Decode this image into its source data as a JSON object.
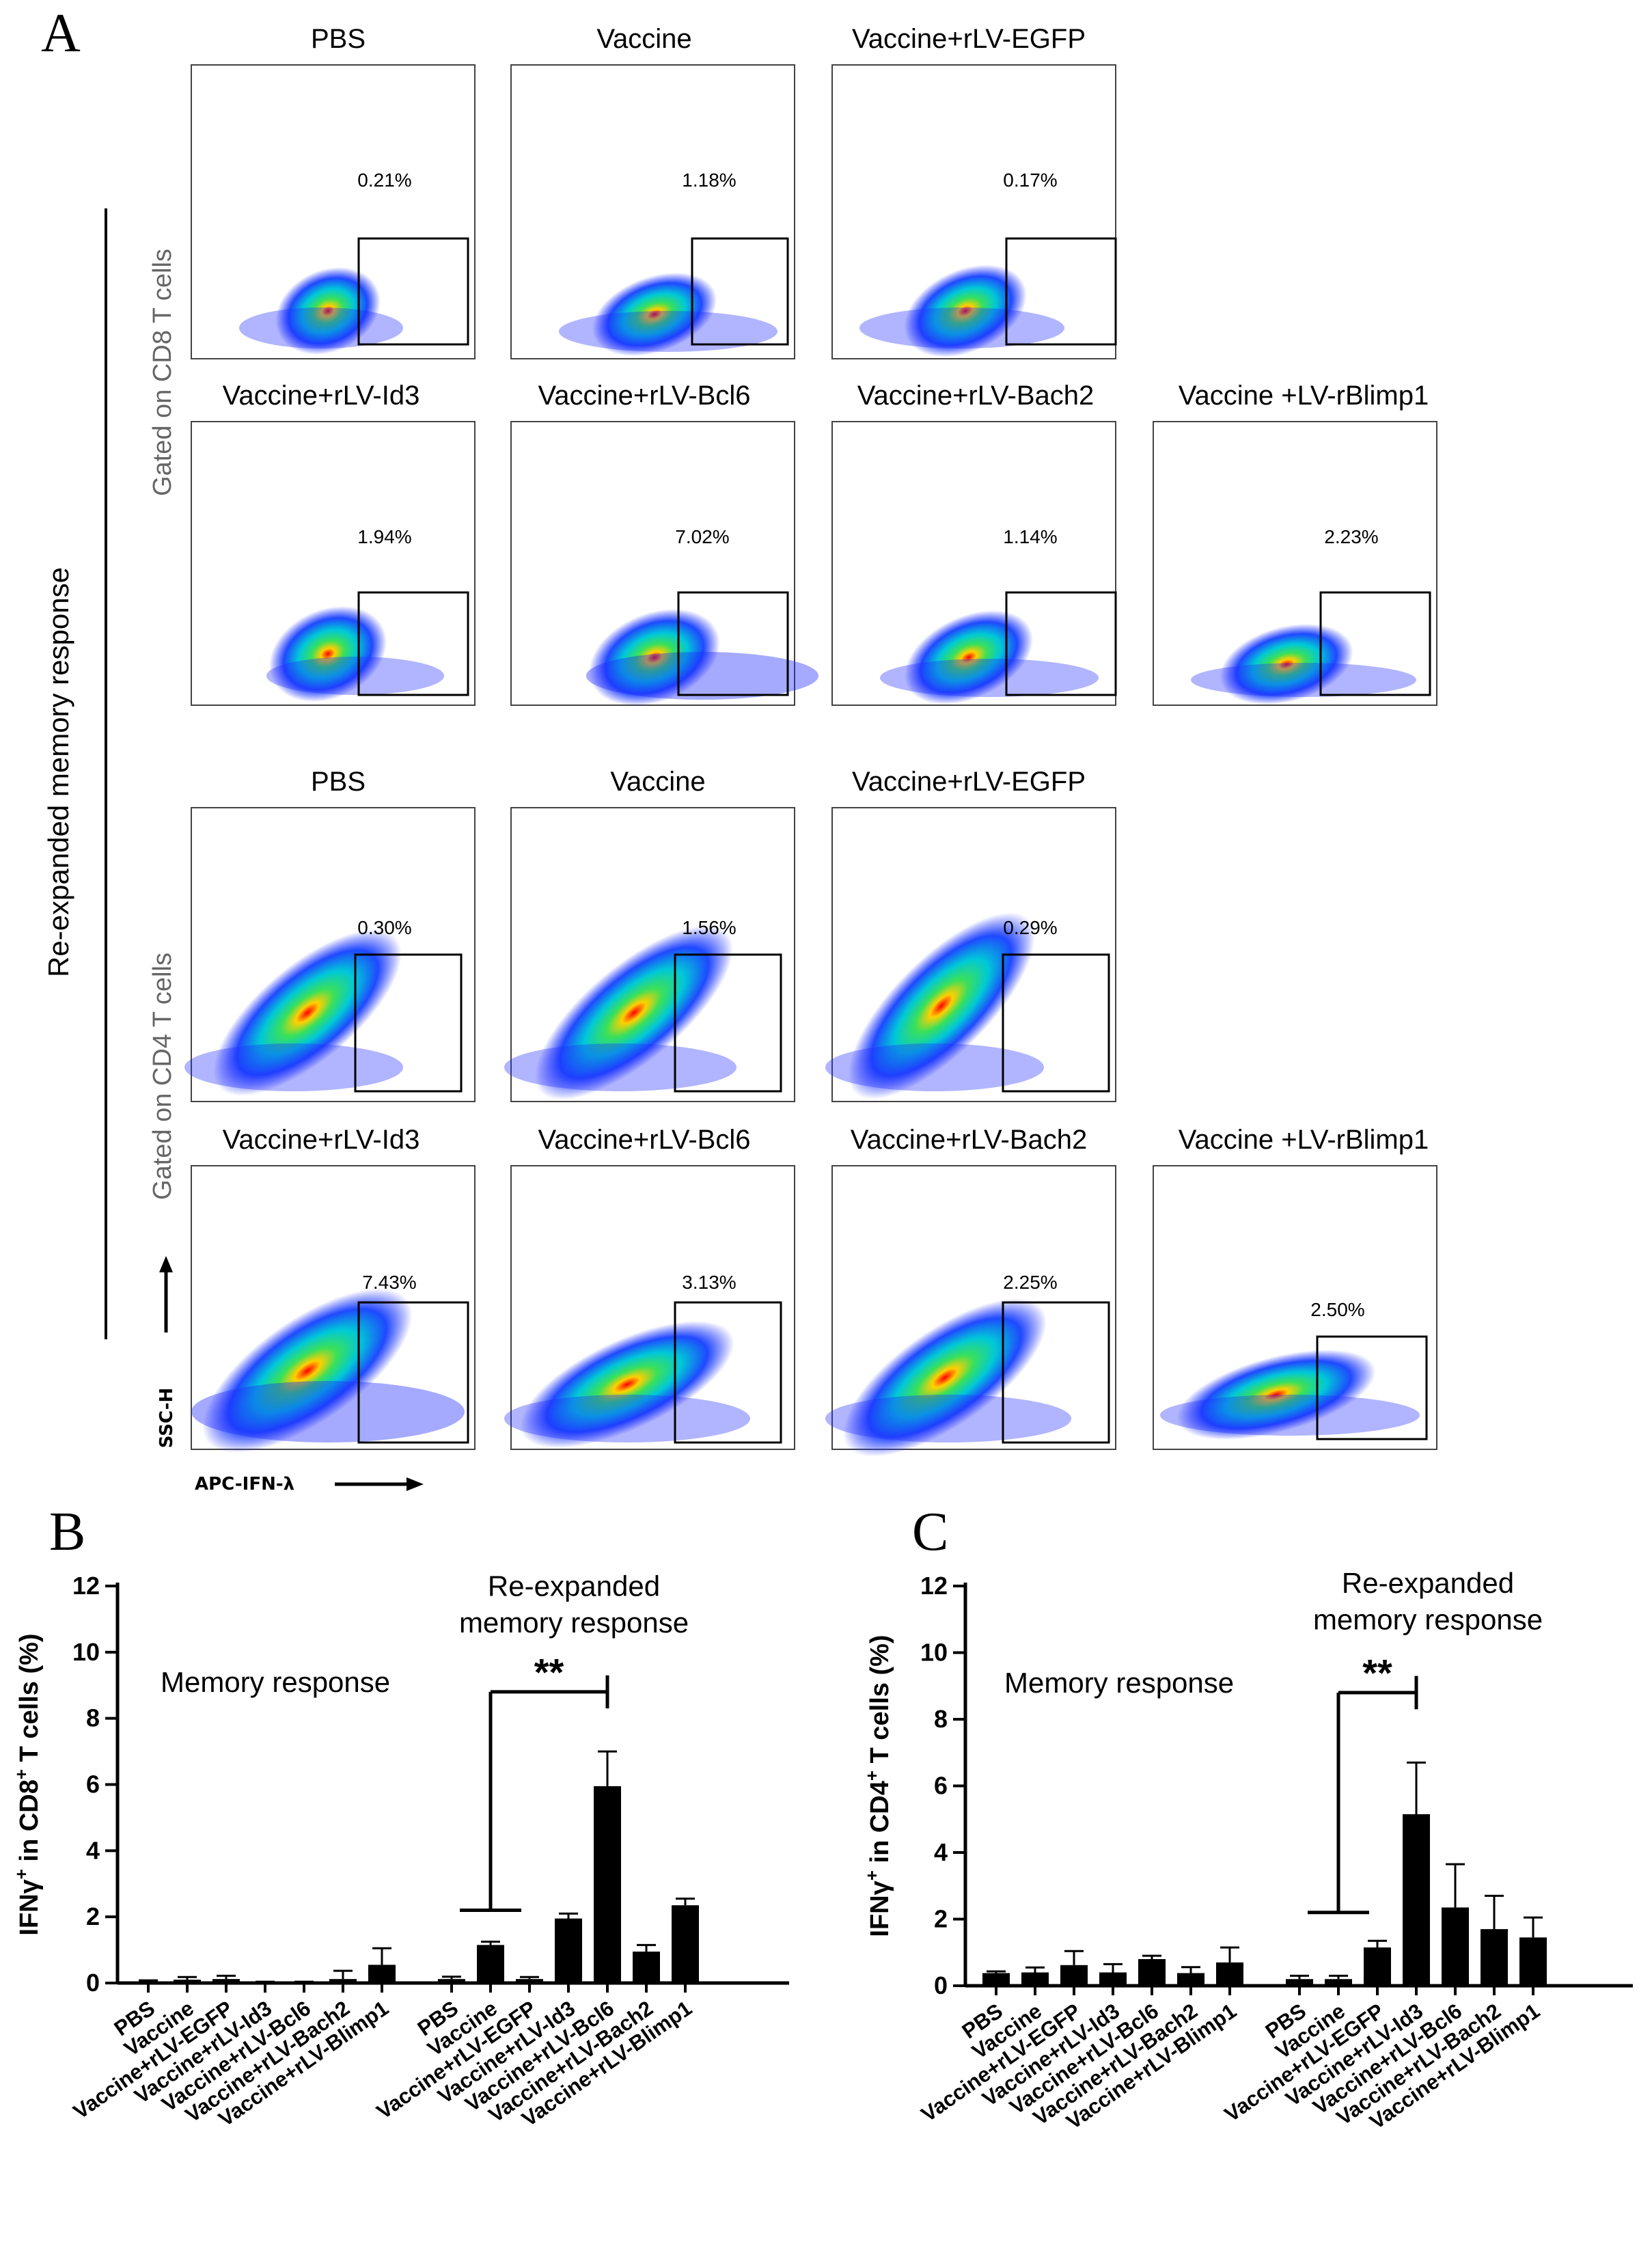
{
  "panel_labels": {
    "a": "A",
    "b": "B",
    "c": "C"
  },
  "flow": {
    "side_label": "Re-expanded memory response",
    "cd8_label": "Gated on CD8 T cells",
    "cd4_label": "Gated on CD4 T cells",
    "y_axis": "SSC-H",
    "x_axis": "APC-IFN-λ",
    "cd8_plots": [
      {
        "title": "PBS",
        "pct": "0.21%"
      },
      {
        "title": "Vaccine",
        "pct": "1.18%"
      },
      {
        "title": "Vaccine+rLV-EGFP",
        "pct": "0.17%"
      },
      {
        "title": "Vaccine+rLV-Id3",
        "pct": "1.94%"
      },
      {
        "title": "Vaccine+rLV-Bcl6",
        "pct": "7.02%"
      },
      {
        "title": "Vaccine+rLV-Bach2",
        "pct": "1.14%"
      },
      {
        "title": "Vaccine +LV-rBlimp1",
        "pct": "2.23%"
      }
    ],
    "cd4_plots": [
      {
        "title": "PBS",
        "pct": "0.30%"
      },
      {
        "title": "Vaccine",
        "pct": "1.56%"
      },
      {
        "title": "Vaccine+rLV-EGFP",
        "pct": "0.29%"
      },
      {
        "title": "Vaccine+rLV-Id3",
        "pct": "7.43%"
      },
      {
        "title": "Vaccine+rLV-Bcl6",
        "pct": "3.13%"
      },
      {
        "title": "Vaccine+rLV-Bach2",
        "pct": "2.25%"
      },
      {
        "title": "Vaccine +LV-rBlimp1",
        "pct": "2.50%"
      }
    ]
  },
  "chart_data": [
    {
      "panel": "B",
      "type": "bar",
      "ylabel_main": "IFNγ",
      "ylabel_sup1": "+",
      "ylabel_mid": " in CD8",
      "ylabel_sup2": "+",
      "ylabel_end": " T cells (%)",
      "ylim": [
        0,
        12
      ],
      "yticks": [
        0,
        2,
        4,
        6,
        8,
        10,
        12
      ],
      "group_labels": [
        "Memory response",
        "Re-expanded memory response"
      ],
      "significance": "**",
      "groups": [
        {
          "categories": [
            "PBS",
            "Vaccine",
            "Vaccine+rLV-EGFP",
            "Vaccine+rLV-Id3",
            "Vaccine+rLV-Bcl6",
            "Vaccine+rLV-Bach2",
            "Vaccine+rLV-Blimp1"
          ],
          "values": [
            0.05,
            0.1,
            0.12,
            0.02,
            0.02,
            0.12,
            0.55
          ],
          "errors": [
            0.03,
            0.08,
            0.1,
            0.02,
            0.02,
            0.25,
            0.5
          ]
        },
        {
          "categories": [
            "PBS",
            "Vaccine",
            "Vaccine+rLV-EGFP",
            "Vaccine+rLV-Id3",
            "Vaccine+rLV-Bcl6",
            "Vaccine+rLV-Bach2",
            "Vaccine+rLV-Blimp1"
          ],
          "values": [
            0.12,
            1.15,
            0.12,
            1.95,
            5.95,
            0.95,
            2.35
          ],
          "errors": [
            0.07,
            0.1,
            0.06,
            0.15,
            1.05,
            0.2,
            0.2
          ]
        }
      ]
    },
    {
      "panel": "C",
      "type": "bar",
      "ylabel_main": "IFNγ",
      "ylabel_sup1": "+",
      "ylabel_mid": " in CD4",
      "ylabel_sup2": "+",
      "ylabel_end": " T cells (%)",
      "ylim": [
        0,
        12
      ],
      "yticks": [
        0,
        2,
        4,
        6,
        8,
        10,
        12
      ],
      "group_labels": [
        "Memory response",
        "Re-expanded memory response"
      ],
      "significance": "**",
      "groups": [
        {
          "categories": [
            "PBS",
            "Vaccine",
            "Vaccine+rLV-EGFP",
            "Vaccine+rLV-Id3",
            "Vaccine+rLV-Bcl6",
            "Vaccine+rLV-Bach2",
            "Vaccine+rLV-Blimp1"
          ],
          "values": [
            0.38,
            0.4,
            0.62,
            0.4,
            0.8,
            0.38,
            0.7
          ],
          "errors": [
            0.05,
            0.15,
            0.42,
            0.25,
            0.1,
            0.18,
            0.45
          ]
        },
        {
          "categories": [
            "PBS",
            "Vaccine",
            "Vaccine+rLV-EGFP",
            "Vaccine+rLV-Id3",
            "Vaccine+rLV-Bcl6",
            "Vaccine+rLV-Bach2",
            "Vaccine+rLV-Blimp1"
          ],
          "values": [
            0.2,
            0.2,
            1.15,
            5.15,
            2.35,
            1.7,
            1.45
          ],
          "errors": [
            0.1,
            0.1,
            0.2,
            1.55,
            1.3,
            1.0,
            0.6
          ]
        }
      ]
    }
  ]
}
